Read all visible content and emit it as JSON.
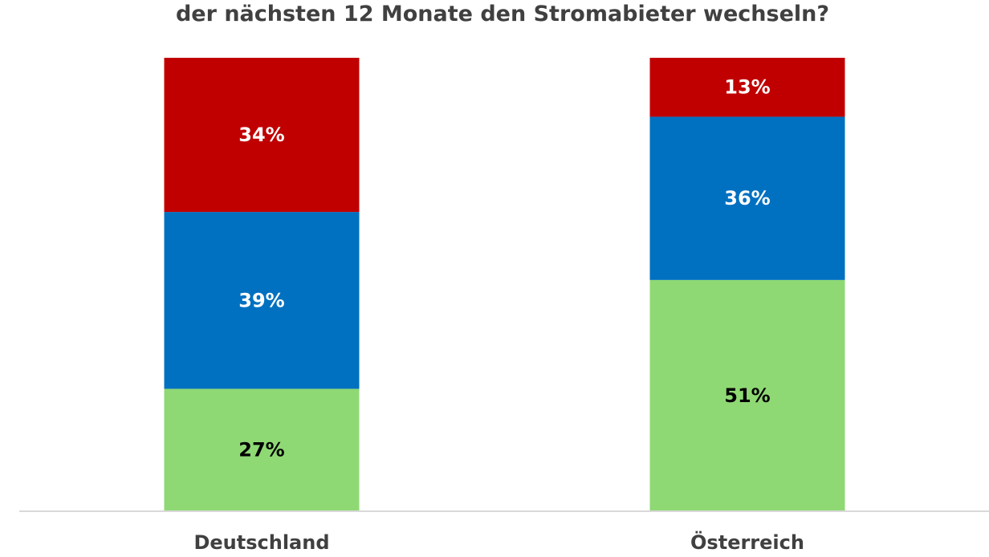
{
  "chart_data": {
    "type": "bar",
    "stacked": true,
    "title": "der nächsten 12 Monate den Stromabieter wechseln?",
    "categories": [
      "Deutschland",
      "Österreich"
    ],
    "series": [
      {
        "values": [
          27,
          51
        ],
        "color": "#8fd974",
        "label_color": "#000000",
        "data_labels": [
          "27%",
          "51%"
        ]
      },
      {
        "values": [
          39,
          36
        ],
        "color": "#0070c0",
        "label_color": "#ffffff",
        "data_labels": [
          "39%",
          "36%"
        ]
      },
      {
        "values": [
          34,
          13
        ],
        "color": "#c00000",
        "label_color": "#ffffff",
        "data_labels": [
          "34%",
          "13%"
        ]
      }
    ],
    "ylim": [
      0,
      100
    ],
    "grid": false,
    "legend": "none"
  }
}
